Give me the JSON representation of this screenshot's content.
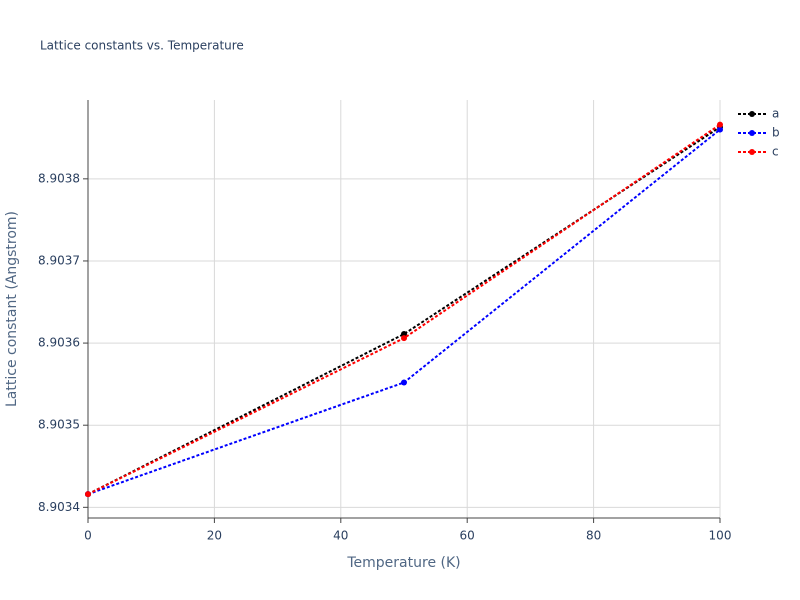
{
  "chart_data": {
    "type": "line",
    "title": "Lattice constants vs. Temperature",
    "x_label": "Temperature (K)",
    "y_label": "Lattice constant (Angstrom)",
    "x": [
      0,
      50,
      100
    ],
    "series": [
      {
        "name": "a",
        "color": "#000000",
        "values": [
          8.903416,
          8.903611,
          8.903863
        ]
      },
      {
        "name": "b",
        "color": "#0000ff",
        "values": [
          8.903416,
          8.903552,
          8.90386
        ]
      },
      {
        "name": "c",
        "color": "#ff0000",
        "values": [
          8.903416,
          8.903606,
          8.903866
        ]
      }
    ],
    "xlim": [
      0,
      100
    ],
    "xticks": [
      0,
      20,
      40,
      60,
      80,
      100
    ],
    "ylim": [
      8.903387,
      8.903896
    ],
    "yticks": [
      8.9034,
      8.9035,
      8.9036,
      8.9037,
      8.9038
    ],
    "grid": true,
    "legend": "right"
  }
}
